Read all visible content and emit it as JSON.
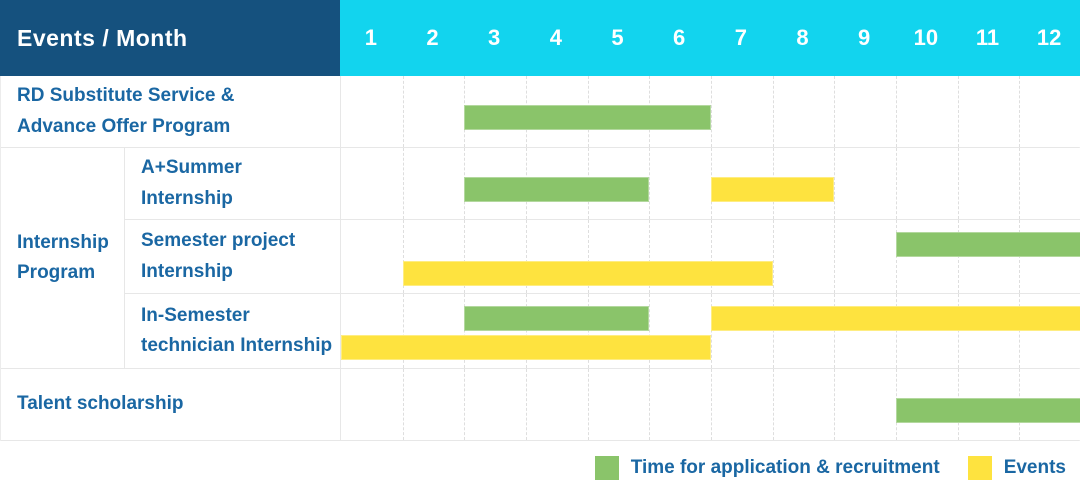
{
  "header": {
    "title": "Events / Month"
  },
  "group": {
    "label": "Internship\nProgram"
  },
  "colors": {
    "header_bg": "#15517e",
    "months_bg": "#12d4ee",
    "text_blue": "#1a67a3",
    "green": "#8ac46a",
    "yellow": "#fee33f"
  },
  "chart_data": {
    "type": "bar",
    "variant": "gantt-timeline",
    "x_ticks": [
      "1",
      "2",
      "3",
      "4",
      "5",
      "6",
      "7",
      "8",
      "9",
      "10",
      "11",
      "12"
    ],
    "x_range": [
      1,
      12
    ],
    "grid": "dashed-vertical-month-lines",
    "legend_position": "bottom-right",
    "rows": [
      {
        "label": "RD Substitute Service &\nAdvance Offer Program",
        "bars": [
          {
            "series": "recruitment",
            "start_month": 3,
            "end_month": 6,
            "lane": "mid"
          }
        ]
      },
      {
        "label": "A+Summer\nInternship",
        "bars": [
          {
            "series": "recruitment",
            "start_month": 3,
            "end_month": 5,
            "lane": "mid"
          },
          {
            "series": "events",
            "start_month": 7,
            "end_month": 8,
            "lane": "mid"
          }
        ]
      },
      {
        "label": "Semester project\nInternship",
        "bars": [
          {
            "series": "recruitment",
            "start_month": 10,
            "end_month": 12,
            "lane": "top"
          },
          {
            "series": "events",
            "start_month": 2,
            "end_month": 7,
            "lane": "bottom"
          }
        ]
      },
      {
        "label": "In-Semester\ntechnician Internship",
        "bars": [
          {
            "series": "recruitment",
            "start_month": 3,
            "end_month": 5,
            "lane": "top"
          },
          {
            "series": "events",
            "start_month": 7,
            "end_month": 12,
            "lane": "top"
          },
          {
            "series": "events",
            "start_month": 1,
            "end_month": 6,
            "lane": "bottom"
          }
        ]
      },
      {
        "label": "Talent scholarship",
        "bars": [
          {
            "series": "recruitment",
            "start_month": 10,
            "end_month": 12,
            "lane": "mid"
          }
        ]
      }
    ],
    "legend": [
      {
        "series": "recruitment",
        "color": "#8ac46a",
        "label": "Time for application & recruitment"
      },
      {
        "series": "events",
        "color": "#fee33f",
        "label": "Events"
      }
    ]
  }
}
